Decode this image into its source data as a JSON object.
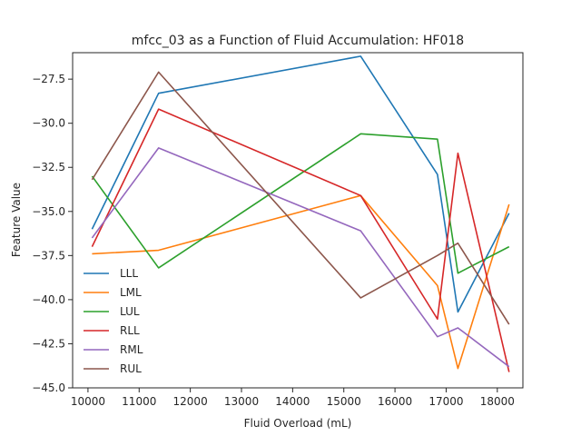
{
  "chart_data": {
    "type": "line",
    "title": "mfcc_03 as a Function of Fluid Accumulation: HF018",
    "xlabel": "Fluid Overload (mL)",
    "ylabel": "Feature Value",
    "xlim": [
      9700,
      18500
    ],
    "ylim": [
      -45.0,
      -26.0
    ],
    "xticks": [
      10000,
      11000,
      12000,
      13000,
      14000,
      15000,
      16000,
      17000,
      18000
    ],
    "yticks": [
      -45.0,
      -42.5,
      -40.0,
      -37.5,
      -35.0,
      -32.5,
      -30.0,
      -27.5
    ],
    "grid": false,
    "legend_position": "lower-left",
    "x": [
      10080,
      11380,
      15330,
      16830,
      17230,
      18230
    ],
    "series": [
      {
        "name": "LLL",
        "color": "#1f77b4",
        "values": [
          -36.0,
          -28.3,
          -26.2,
          -32.9,
          -40.7,
          -35.1
        ]
      },
      {
        "name": "LML",
        "color": "#ff7f0e",
        "values": [
          -37.4,
          -37.2,
          -34.1,
          -39.2,
          -43.9,
          -34.6
        ]
      },
      {
        "name": "LUL",
        "color": "#2ca02c",
        "values": [
          -33.0,
          -38.2,
          -30.6,
          -30.9,
          -38.5,
          -37.0
        ]
      },
      {
        "name": "RLL",
        "color": "#d62728",
        "values": [
          -37.0,
          -29.2,
          -34.1,
          -41.1,
          -31.7,
          -44.1
        ]
      },
      {
        "name": "RML",
        "color": "#9467bd",
        "values": [
          -36.5,
          -31.4,
          -36.1,
          -42.1,
          -41.6,
          -43.8
        ]
      },
      {
        "name": "RUL",
        "color": "#8c564b",
        "values": [
          -33.2,
          -27.1,
          -39.9,
          -37.5,
          -36.8,
          -41.4
        ]
      }
    ]
  }
}
